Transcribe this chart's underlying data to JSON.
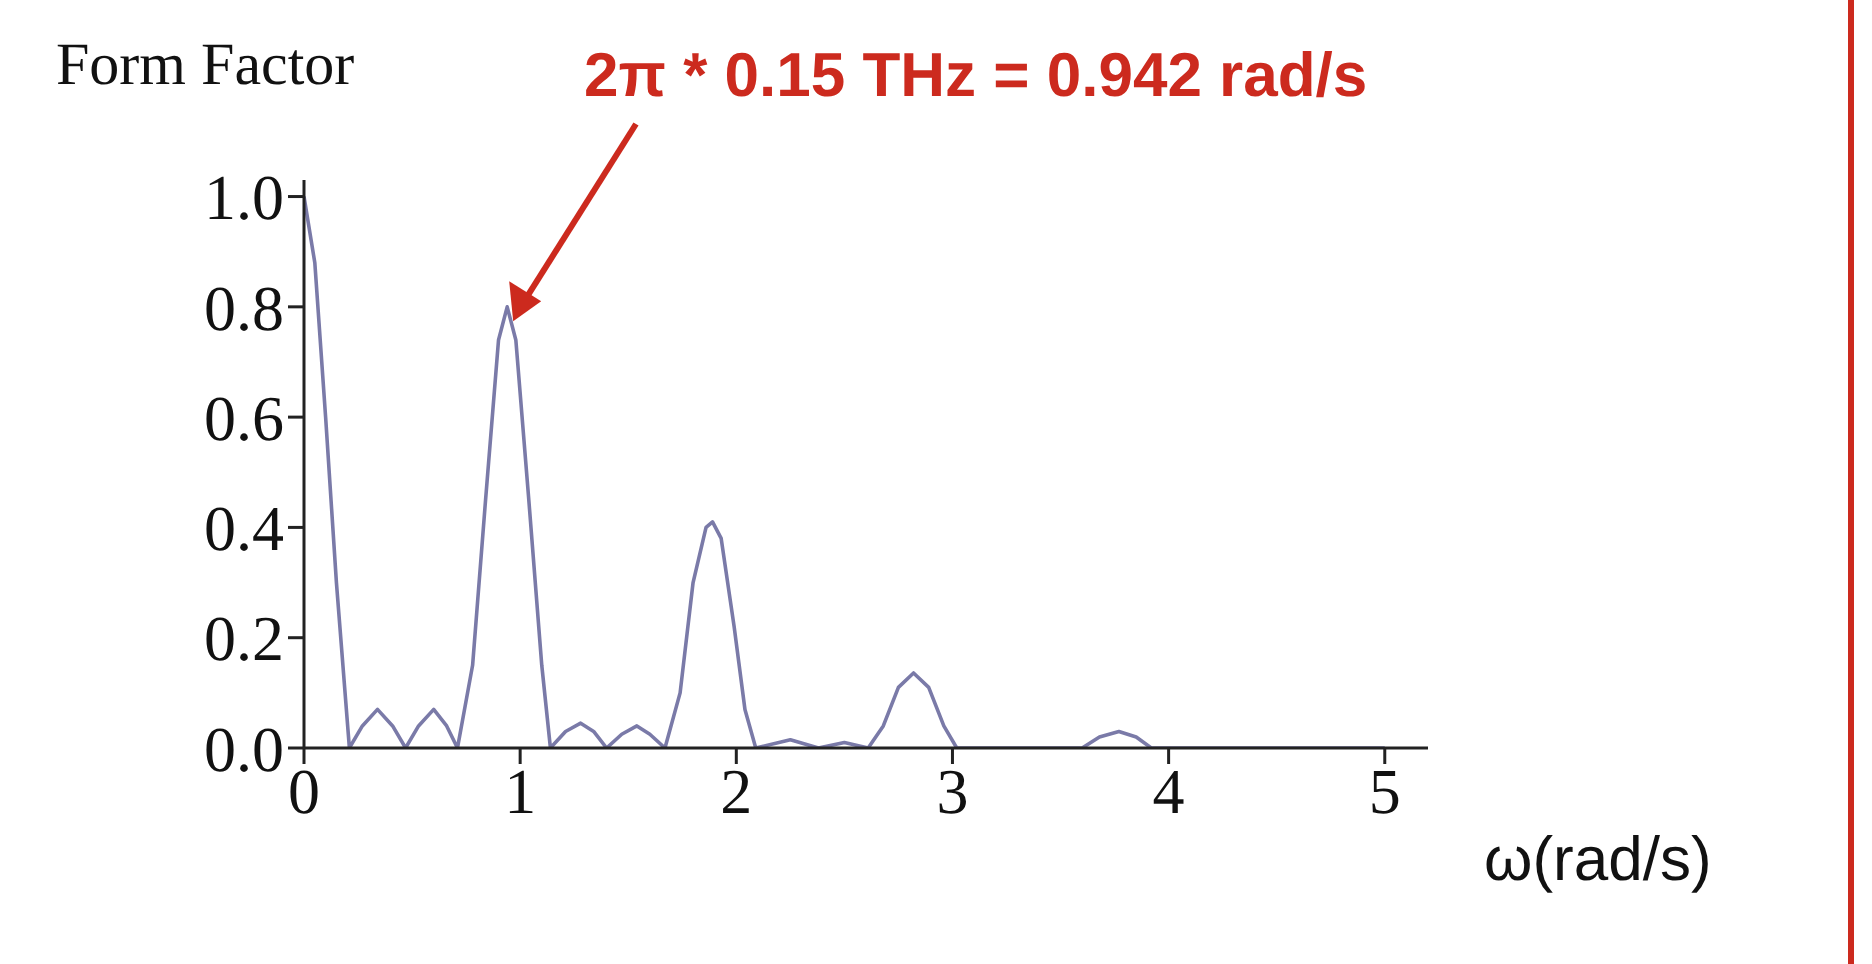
{
  "chart_data": {
    "type": "line",
    "title": "Form Factor",
    "xlabel": "ω(rad/s)",
    "annotations": [
      {
        "text": "2π * 0.15 THz = 0.942 rad/s",
        "x": 0.94,
        "y": 0.8
      }
    ],
    "x": [
      0,
      0.05,
      0.1,
      0.15,
      0.21,
      0.27,
      0.34,
      0.41,
      0.47,
      0.53,
      0.6,
      0.66,
      0.71,
      0.78,
      0.84,
      0.9,
      0.94,
      0.98,
      1.04,
      1.1,
      1.14,
      1.21,
      1.28,
      1.34,
      1.4,
      1.47,
      1.54,
      1.6,
      1.67,
      1.74,
      1.8,
      1.86,
      1.89,
      1.93,
      1.99,
      2.04,
      2.09,
      2.25,
      2.38,
      2.5,
      2.61,
      2.68,
      2.75,
      2.82,
      2.89,
      2.96,
      3.02,
      3.6,
      3.68,
      3.77,
      3.85,
      3.92,
      5
    ],
    "series": [
      {
        "color": "#7a7aa8",
        "values": [
          1.0,
          0.88,
          0.6,
          0.3,
          0,
          0.04,
          0.07,
          0.04,
          0,
          0.04,
          0.07,
          0.04,
          0,
          0.15,
          0.45,
          0.74,
          0.8,
          0.74,
          0.45,
          0.15,
          0,
          0.03,
          0.045,
          0.03,
          0,
          0.025,
          0.04,
          0.025,
          0,
          0.1,
          0.3,
          0.4,
          0.41,
          0.38,
          0.22,
          0.07,
          0,
          0.015,
          0,
          0.01,
          0,
          0.04,
          0.11,
          0.136,
          0.11,
          0.04,
          0,
          0,
          0.02,
          0.03,
          0.02,
          0,
          0
        ]
      }
    ],
    "xlim": [
      0,
      5.2
    ],
    "xticks": [
      0,
      1,
      2,
      3,
      4,
      5
    ],
    "ylim": [
      0,
      1.03
    ],
    "yticks": [
      {
        "value": 0,
        "label": "0.0"
      },
      {
        "value": 0.2,
        "label": "0.2"
      },
      {
        "value": 0.4,
        "label": "0.4"
      },
      {
        "value": 0.6,
        "label": "0.6"
      },
      {
        "value": 0.8,
        "label": "0.8"
      },
      {
        "value": 1,
        "label": "1.0"
      }
    ],
    "marker": "none",
    "line_style": "solid"
  }
}
